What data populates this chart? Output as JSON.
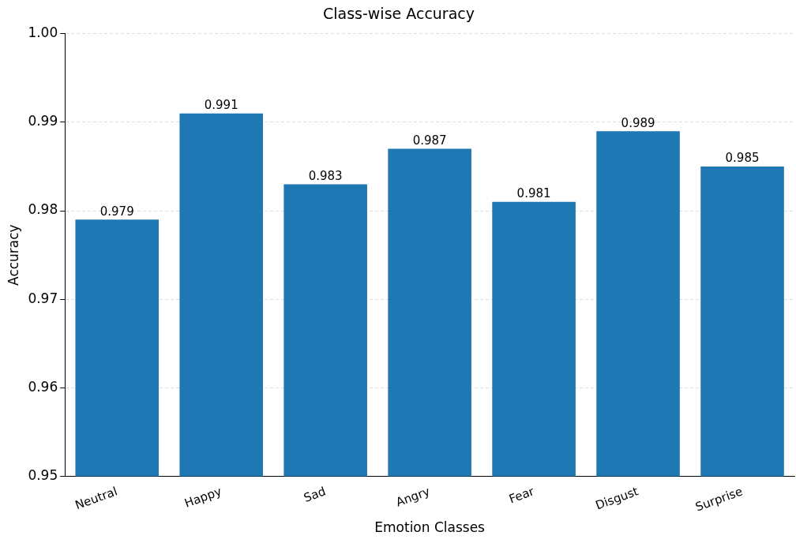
{
  "chart_data": {
    "type": "bar",
    "title": "Class-wise Accuracy",
    "xlabel": "Emotion Classes",
    "ylabel": "Accuracy",
    "categories": [
      "Neutral",
      "Happy",
      "Sad",
      "Angry",
      "Fear",
      "Disgust",
      "Surprise"
    ],
    "values": [
      0.979,
      0.991,
      0.983,
      0.987,
      0.981,
      0.989,
      0.985
    ],
    "color": "#1f77b4",
    "ylim": [
      0.95,
      1.0
    ],
    "yticks": [
      0.95,
      0.96,
      0.97,
      0.98,
      0.99,
      {
        "value": 1.0,
        "label": "1.00"
      }
    ],
    "grid": "y",
    "data_labels": true
  }
}
